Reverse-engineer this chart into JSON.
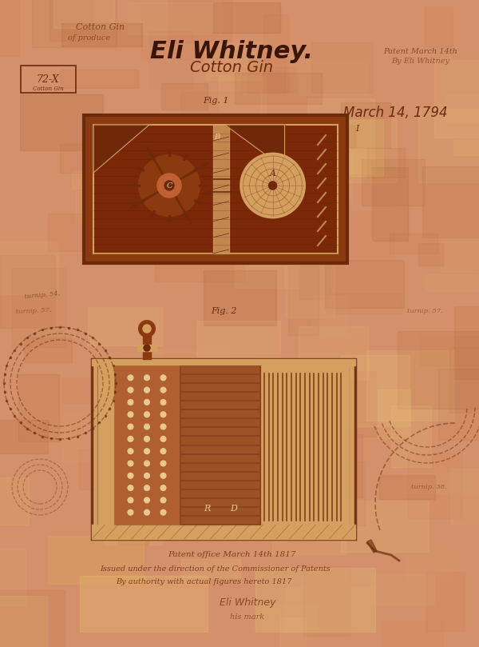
{
  "bg_color": "#D4906A",
  "paper_color": "#C8784A",
  "title_text": "Eli Whitney.",
  "subtitle_text": "Cotton Gin",
  "date_text": "March 14, 1794",
  "fig1_label": "Fig. 1",
  "fig2_label": "Fig. 2",
  "label_box_text": "72-X",
  "bottom_text1": "Patent office March 14th 1817",
  "bottom_text2": "Issued under the direction of the Commissioner of Patents",
  "bottom_text3": "By authority with actual figures hereto 1817",
  "dark_brown": "#6B2A0A",
  "medium_brown": "#8B3A0F",
  "light_tan": "#D4A060",
  "tan_border": "#C8905A",
  "cream": "#E8C890",
  "very_dark": "#3A1505",
  "fig_width": 6.0,
  "fig_height": 8.09
}
